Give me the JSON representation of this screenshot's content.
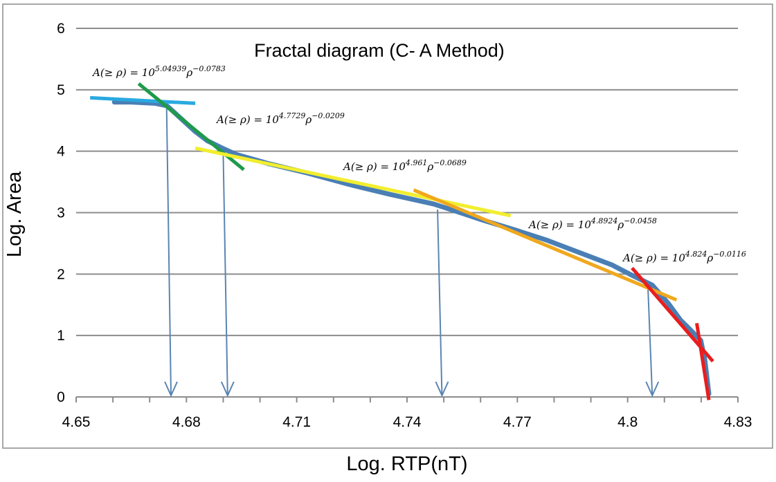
{
  "chart_data": {
    "type": "line",
    "title": "Fractal diagram (C- A Method)",
    "xlabel": "Log. RTP(nT)",
    "ylabel": "Log. Area",
    "xlim": [
      4.65,
      4.83
    ],
    "ylim": [
      0,
      6
    ],
    "xticks": [
      "4.65",
      "4.68",
      "4.71",
      "4.74",
      "4.77",
      "4.8",
      "4.83"
    ],
    "xtick_values": [
      4.65,
      4.68,
      4.71,
      4.74,
      4.77,
      4.8,
      4.83
    ],
    "yticks": [
      "0",
      "1",
      "2",
      "3",
      "4",
      "5",
      "6"
    ],
    "ytick_values": [
      0,
      1,
      2,
      3,
      4,
      5,
      6
    ],
    "grid": "horizontal",
    "series": [
      {
        "color": "#4a7fb5",
        "x": [
          4.6604,
          4.6648,
          4.6714,
          4.6747,
          4.6769,
          4.6791,
          4.6824,
          4.6857,
          4.6901,
          4.6934,
          4.7022,
          4.7132,
          4.7242,
          4.7352,
          4.7473,
          4.755,
          4.7605,
          4.7693,
          4.7781,
          4.7869,
          4.7957,
          4.8012,
          4.8067,
          4.8111,
          4.8144,
          4.8166,
          4.8199,
          4.821,
          4.8221
        ],
        "y": [
          4.8,
          4.8,
          4.78,
          4.74,
          4.62,
          4.5,
          4.32,
          4.17,
          4.04,
          3.95,
          3.8,
          3.64,
          3.46,
          3.3,
          3.14,
          2.99,
          2.88,
          2.72,
          2.55,
          2.35,
          2.15,
          1.98,
          1.82,
          1.52,
          1.25,
          1.12,
          0.92,
          0.6,
          0.05
        ]
      }
    ],
    "fit_lines": [
      {
        "color": "#29a9e0",
        "x": [
          4.6538,
          4.6824
        ],
        "y": [
          4.87,
          4.78
        ]
      },
      {
        "color": "#1f9a4a",
        "x": [
          4.667,
          4.6956
        ],
        "y": [
          5.1,
          3.7
        ]
      },
      {
        "color": "#f2ee2e",
        "x": [
          4.6824,
          4.7682
        ],
        "y": [
          4.05,
          2.95
        ]
      },
      {
        "color": "#f0a81e",
        "x": [
          4.7418,
          4.8133
        ],
        "y": [
          3.37,
          1.58
        ]
      },
      {
        "color": "#e81e1e",
        "x": [
          4.8012,
          4.8232
        ],
        "y": [
          2.1,
          0.58
        ]
      },
      {
        "color": "#e81e1e",
        "x": [
          4.8188,
          4.8221
        ],
        "y": [
          1.2,
          -0.05
        ]
      }
    ],
    "thresholds_x": [
      4.6758,
      4.6912,
      4.7495,
      4.8067
    ],
    "threshold_y": [
      4.74,
      3.95,
      3.05,
      1.82
    ],
    "annotations": [
      {
        "text": "A(≥ ρ) = 10",
        "exponent1": "5.04939",
        "mid": "ρ",
        "exponent2": "−0.0783"
      },
      {
        "text": "A(≥ ρ) = 10",
        "exponent1": "4.7729",
        "mid": "ρ",
        "exponent2": "−0.0209"
      },
      {
        "text": "A(≥ ρ) = 10",
        "exponent1": "4.961",
        "mid": "ρ",
        "exponent2": "−0.0689"
      },
      {
        "text": "A(≥ ρ) = 10",
        "exponent1": "4.8924",
        "mid": "ρ",
        "exponent2": "−0.0458"
      },
      {
        "text": "A(≥ ρ) = 10",
        "exponent1": "4.824",
        "mid": "ρ",
        "exponent2": "−0.0116"
      }
    ]
  }
}
